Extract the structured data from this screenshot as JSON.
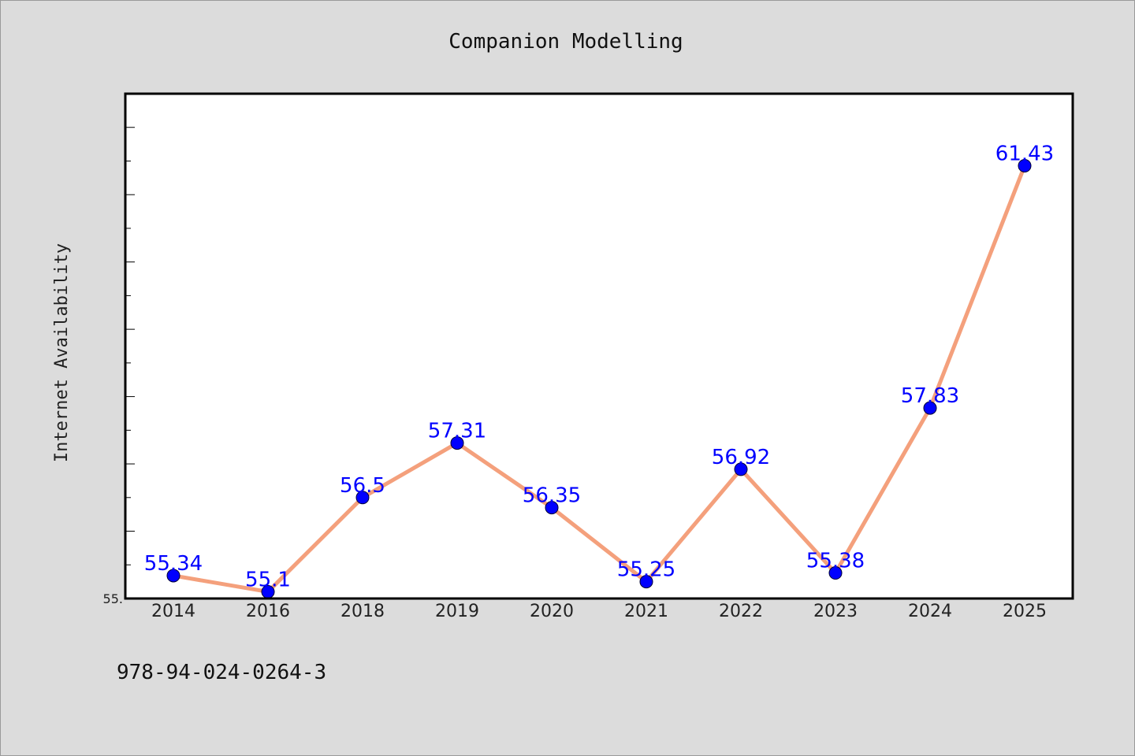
{
  "chart_data": {
    "type": "line",
    "title": "Companion Modelling",
    "xlabel": "",
    "ylabel": "Internet Availability",
    "categories": [
      "2014",
      "2016",
      "2018",
      "2019",
      "2020",
      "2021",
      "2022",
      "2023",
      "2024",
      "2025"
    ],
    "series": [
      {
        "values": [
          55.34,
          55.1,
          56.5,
          57.31,
          56.35,
          55.25,
          56.92,
          55.38,
          57.83,
          61.43
        ],
        "labels": [
          "55.34",
          "55.1",
          "56.5",
          "57.31",
          "56.35",
          "55.25",
          "56.92",
          "55.38",
          "57.83",
          "61.43"
        ],
        "line_color": "#f4a07c",
        "marker_color": "#0000ff"
      }
    ],
    "ylim": [
      55.0,
      62.5
    ],
    "y_tick_label": "55.",
    "grid": false,
    "legend": "none"
  },
  "footer": {
    "isbn": "978-94-024-0264-3"
  },
  "colors": {
    "background": "#dcdcdc",
    "plot_background": "#ffffff"
  }
}
